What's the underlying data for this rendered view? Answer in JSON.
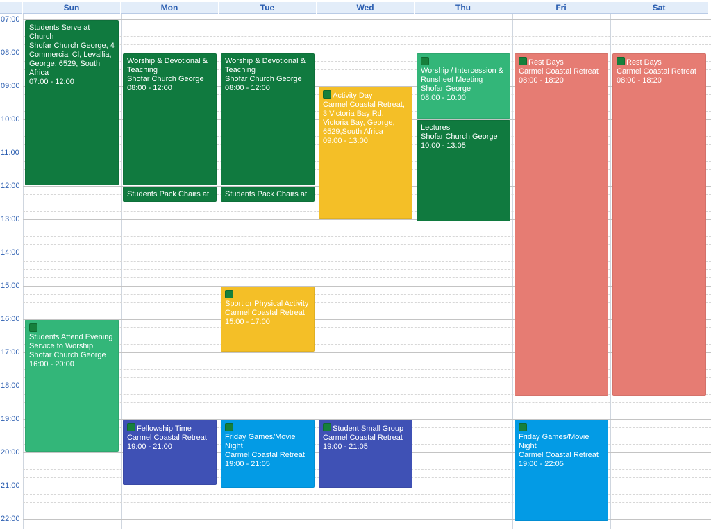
{
  "days": [
    "Sun",
    "Mon",
    "Tue",
    "Wed",
    "Thu",
    "Fri",
    "Sat"
  ],
  "times": [
    "07:00",
    "08:00",
    "09:00",
    "10:00",
    "11:00",
    "12:00",
    "13:00",
    "14:00",
    "15:00",
    "16:00",
    "17:00",
    "18:00",
    "19:00",
    "20:00",
    "21:00",
    "22:00"
  ],
  "colors": {
    "dark_green": "#107a3f",
    "light_green": "#33b679",
    "yellow": "#f4bf27",
    "salmon": "#e67c73",
    "indigo": "#3f51b5",
    "blue": "#039be5",
    "icon": "#16803c"
  },
  "events": [
    {
      "title": "Students Serve at Church",
      "lines": [
        "Shofar Church George, 4 Commercial Cl, Levallia, George, 6529, South Africa",
        "07:00 - 12:00"
      ],
      "color": "dark_green",
      "icon": false
    },
    {
      "title": "Worship & Devotional & Teaching",
      "lines": [
        "Shofar Church George",
        "08:00 - 12:00"
      ],
      "color": "dark_green",
      "icon": false
    },
    {
      "title": "Students Pack Chairs at",
      "lines": [],
      "color": "dark_green",
      "icon": false
    },
    {
      "title": "Worship & Devotional & Teaching",
      "lines": [
        "Shofar Church George",
        "08:00 - 12:00"
      ],
      "color": "dark_green",
      "icon": false
    },
    {
      "title": "Students Pack Chairs at",
      "lines": [],
      "color": "dark_green",
      "icon": false
    },
    {
      "title": "Activity Day",
      "lines": [
        "Carmel Coastal Retreat, 3 Victoria Bay Rd, Victoria Bay, George, 6529,South Africa",
        "09:00 - 13:00"
      ],
      "color": "yellow",
      "icon": true,
      "icon_inline": true
    },
    {
      "title": "Worship / Intercession & Runsheet Meeting",
      "lines": [
        "Shofar George",
        "08:00 - 10:00"
      ],
      "color": "light_green",
      "icon": true
    },
    {
      "title": "Lectures",
      "lines": [
        "Shofar Church George",
        "10:00 - 13:05"
      ],
      "color": "dark_green",
      "icon": false
    },
    {
      "title": "Rest Days",
      "lines": [
        "Carmel Coastal Retreat",
        "08:00 - 18:20"
      ],
      "color": "salmon",
      "icon": true,
      "icon_inline": true
    },
    {
      "title": "Rest Days",
      "lines": [
        "Carmel Coastal Retreat",
        "08:00 - 18:20"
      ],
      "color": "salmon",
      "icon": true,
      "icon_inline": true
    },
    {
      "title": "Students Attend Evening Service to Worship",
      "lines": [
        "Shofar Church George",
        "16:00 - 20:00"
      ],
      "color": "light_green",
      "icon": true
    },
    {
      "title": "Sport or Physical Activity",
      "lines": [
        "Carmel Coastal Retreat",
        "15:00 - 17:00"
      ],
      "color": "yellow",
      "icon": true
    },
    {
      "title": "Fellowship Time",
      "lines": [
        "Carmel Coastal Retreat",
        "19:00 - 21:00"
      ],
      "color": "indigo",
      "icon": true,
      "icon_inline": true
    },
    {
      "title": "Friday Games/Movie Night",
      "lines": [
        "Carmel Coastal Retreat",
        "19:00 - 21:05"
      ],
      "color": "blue",
      "icon": true
    },
    {
      "title": "Student Small Group",
      "lines": [
        "Carmel Coastal Retreat",
        "19:00 - 21:05"
      ],
      "color": "indigo",
      "icon": true,
      "icon_inline": true
    },
    {
      "title": "Friday Games/Movie Night",
      "lines": [
        "Carmel Coastal Retreat",
        "19:00 - 22:05"
      ],
      "color": "blue",
      "icon": true
    }
  ]
}
